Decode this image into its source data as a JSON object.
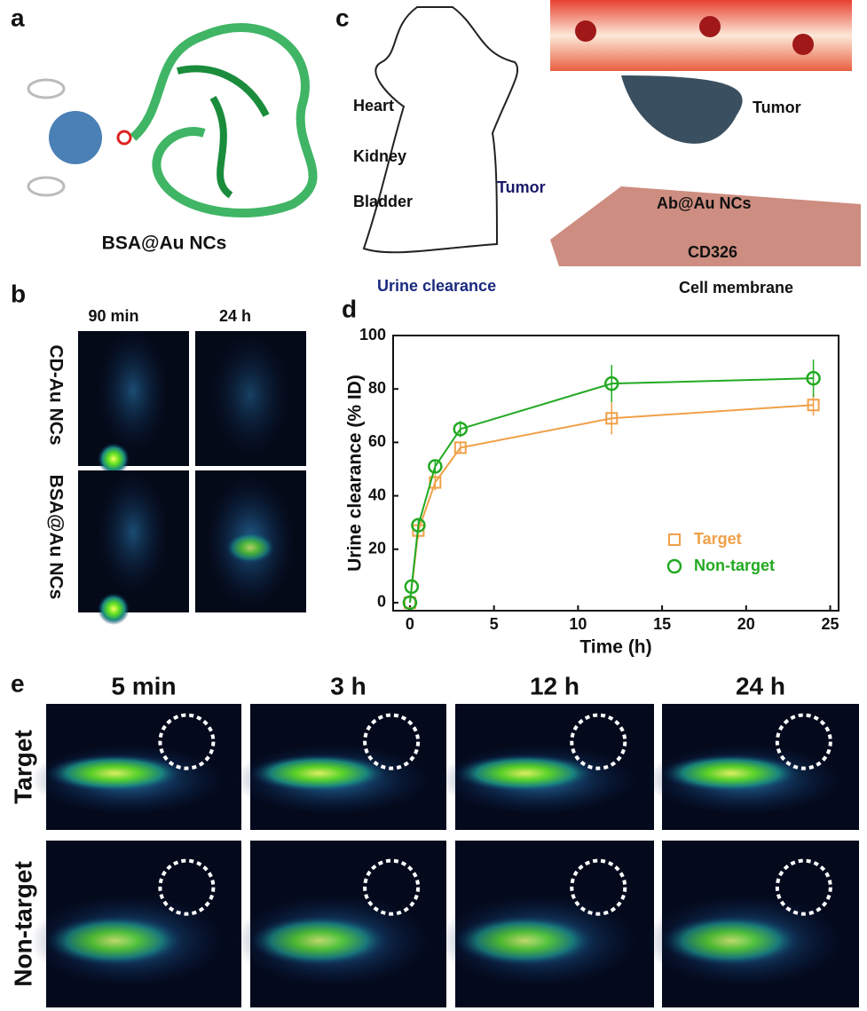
{
  "panels": {
    "a": {
      "label": "a",
      "caption": "BSA@Au NCs"
    },
    "b": {
      "label": "b",
      "columns": [
        "90 min",
        "24 h"
      ],
      "rows": [
        "CD-Au NCs",
        "BSA@Au NCs"
      ]
    },
    "c": {
      "label": "c",
      "organs": [
        "Heart",
        "Kidney",
        "Bladder"
      ],
      "tumor_body": "Tumor",
      "urine": "Urine clearance",
      "tumor": "Tumor",
      "nc": "Ab@Au NCs",
      "receptor": "CD326",
      "membrane": "Cell membrane"
    },
    "d": {
      "label": "d"
    },
    "e": {
      "label": "e",
      "columns": [
        "5 min",
        "3 h",
        "12 h",
        "24 h"
      ],
      "rows": [
        "Target",
        "Non-target"
      ]
    }
  },
  "chart_data": {
    "type": "scatter",
    "x_label": "Time (h)",
    "y_label": "Urine clearance (% ID)",
    "xlim": [
      -1,
      25.5
    ],
    "ylim": [
      -3,
      100
    ],
    "xticks": [
      0,
      5,
      10,
      15,
      20,
      25
    ],
    "yticks": [
      0,
      20,
      40,
      60,
      80,
      100
    ],
    "legend": "lower right",
    "series": [
      {
        "name": "Target",
        "color": "#f0a048",
        "marker": "square",
        "x": [
          0,
          0.5,
          1.5,
          3,
          12,
          24
        ],
        "values": [
          0,
          27,
          45,
          58,
          69,
          74
        ],
        "errors": [
          0,
          3,
          3,
          2,
          6,
          4
        ]
      },
      {
        "name": "Non-target",
        "color": "#22aa22",
        "marker": "circle",
        "x": [
          0,
          0.1,
          0.5,
          1.5,
          3,
          12,
          24
        ],
        "values": [
          0,
          6,
          29,
          51,
          65,
          82,
          84
        ],
        "errors": [
          0,
          1,
          2,
          2,
          3,
          7,
          7
        ]
      }
    ]
  }
}
